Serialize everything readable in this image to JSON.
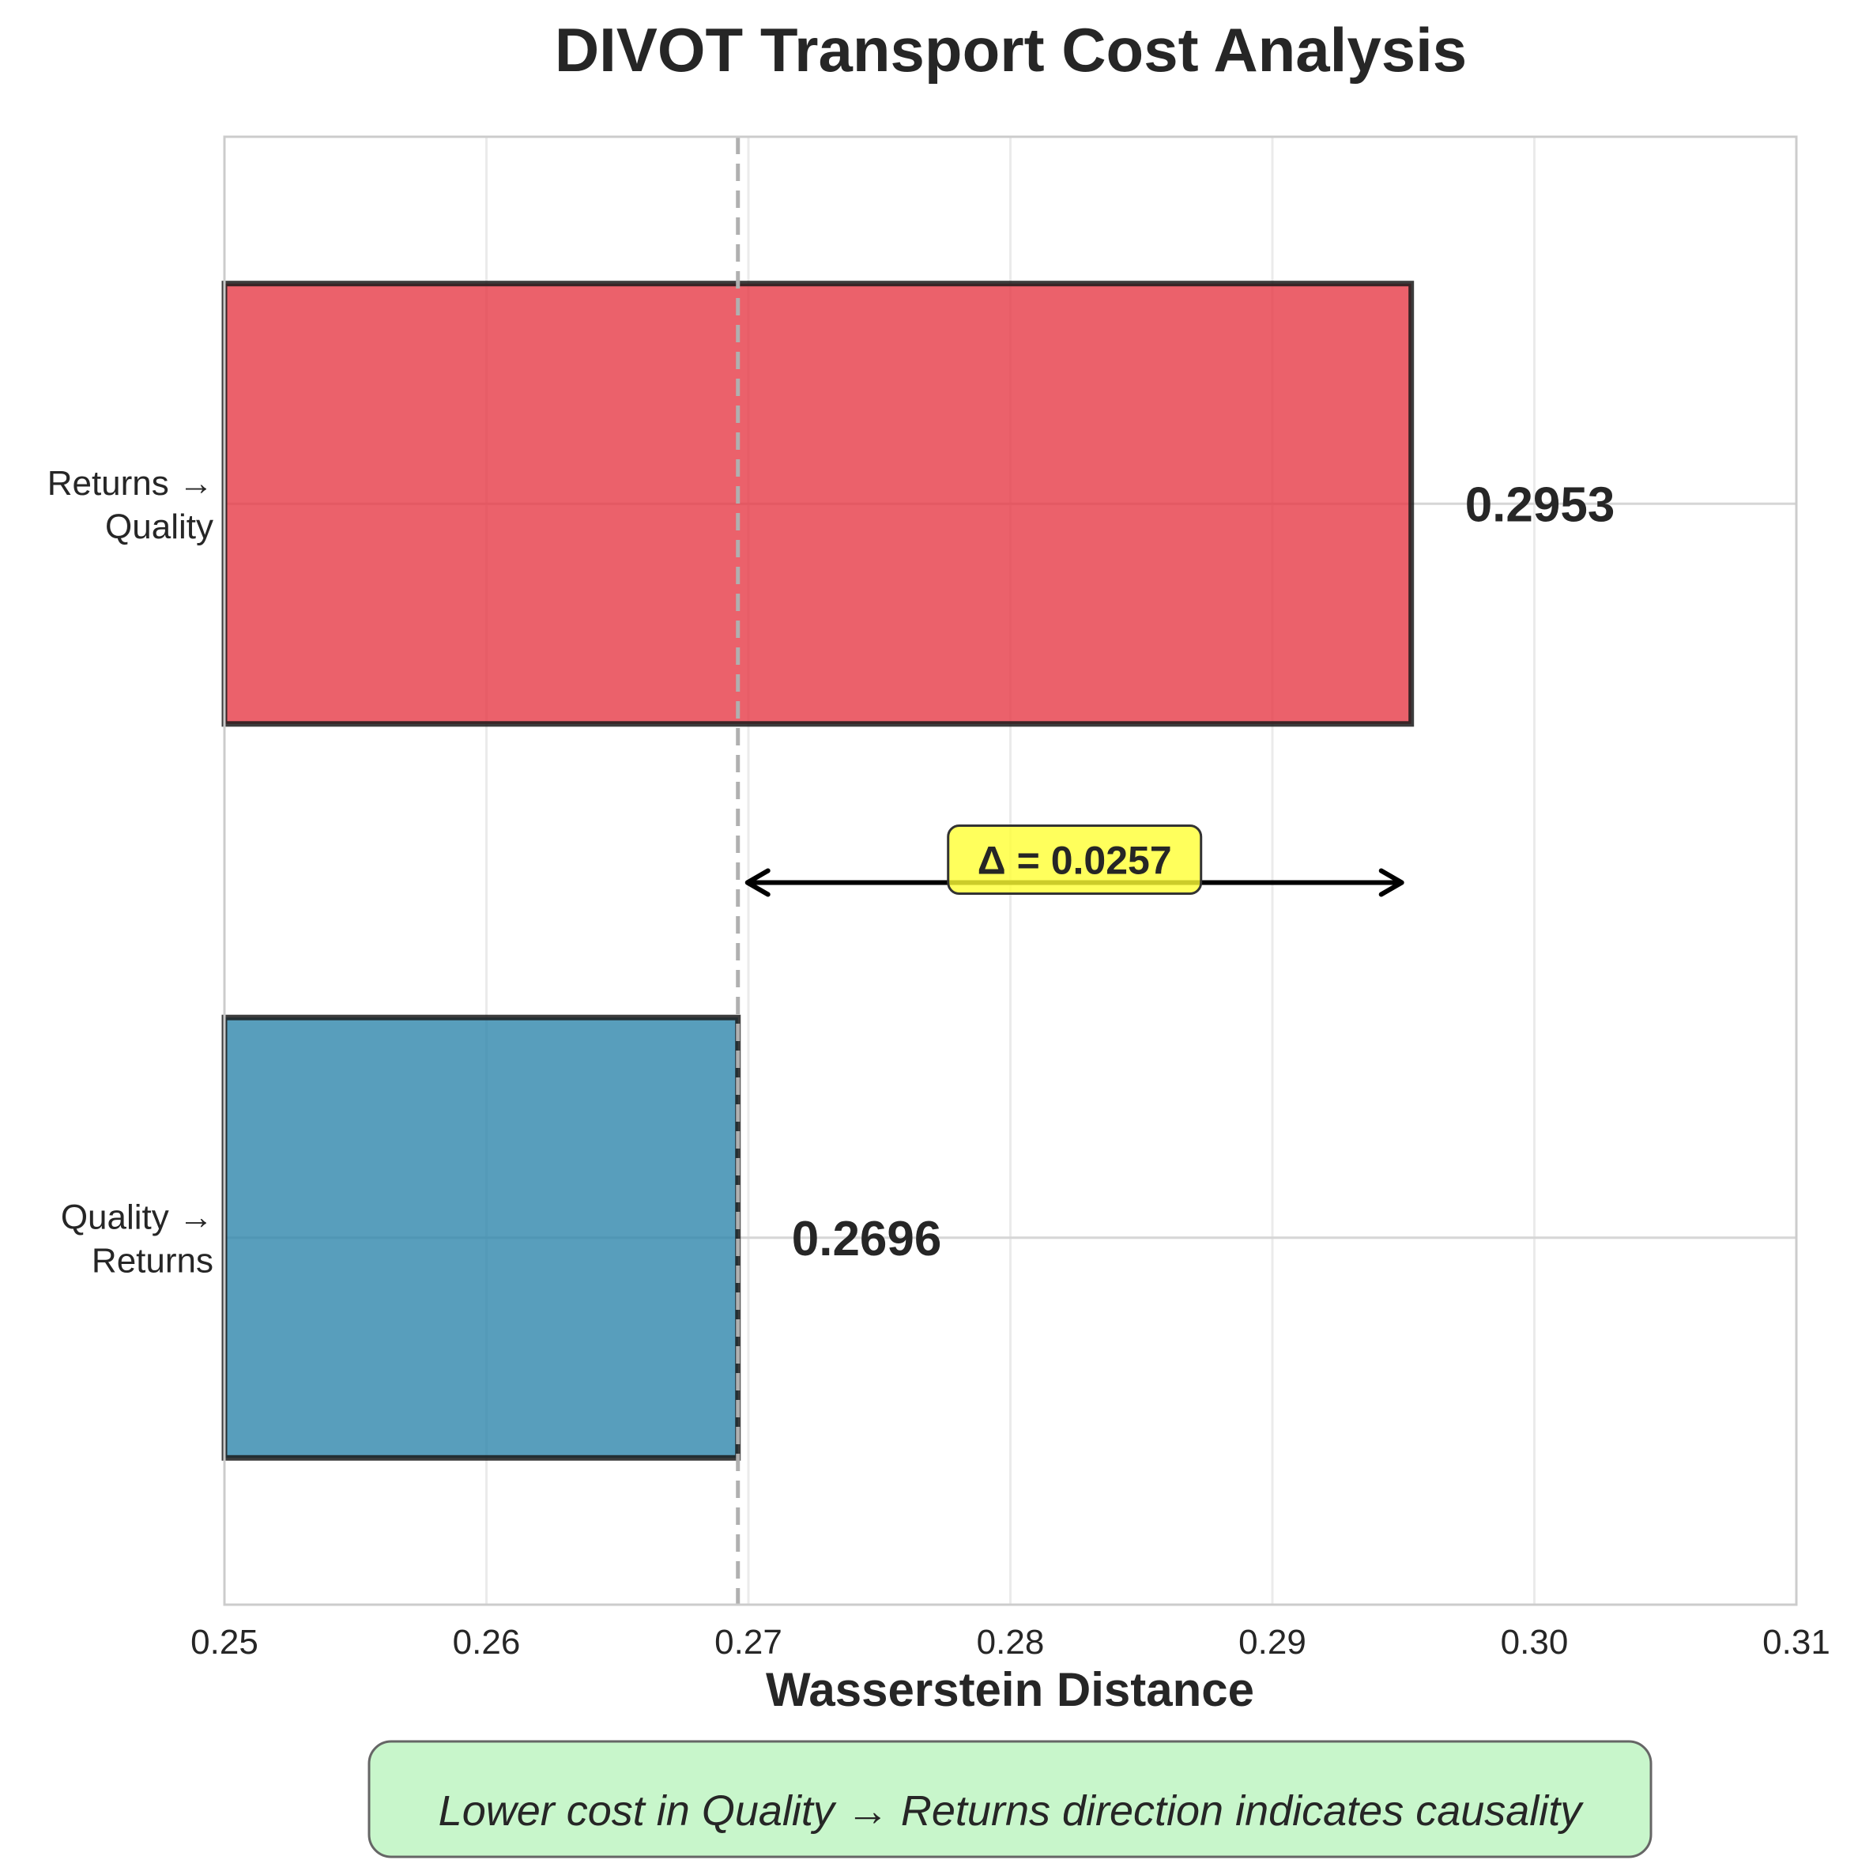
{
  "chart_data": {
    "type": "bar",
    "orientation": "horizontal",
    "title": "DIVOT Transport Cost Analysis",
    "xlabel": "Wasserstein Distance",
    "ylabel": "",
    "xlim": [
      0.25,
      0.31
    ],
    "xticks": [
      0.25,
      0.26,
      0.27,
      0.28,
      0.29,
      0.3,
      0.31
    ],
    "xtick_labels": [
      "0.25",
      "0.26",
      "0.27",
      "0.28",
      "0.29",
      "0.30",
      "0.31"
    ],
    "grid": true,
    "categories": [
      {
        "lines": [
          "Returns →",
          "Quality"
        ]
      },
      {
        "lines": [
          "Quality →",
          "Returns"
        ]
      }
    ],
    "values": [
      0.2953,
      0.2696
    ],
    "value_labels": [
      "0.2953",
      "0.2696"
    ],
    "colors": [
      "#e63946",
      "#2e86ab"
    ],
    "reference_line": {
      "x": 0.2696,
      "style": "dashed",
      "color": "#b0b0b0"
    },
    "annotation": {
      "text": "Δ = 0.0257",
      "from": 0.2696,
      "to": 0.2953,
      "box_color": "#ffff33"
    },
    "footnote": {
      "text": "Lower cost in Quality → Returns direction indicates causality",
      "box_color": "#c5f5c8"
    }
  }
}
